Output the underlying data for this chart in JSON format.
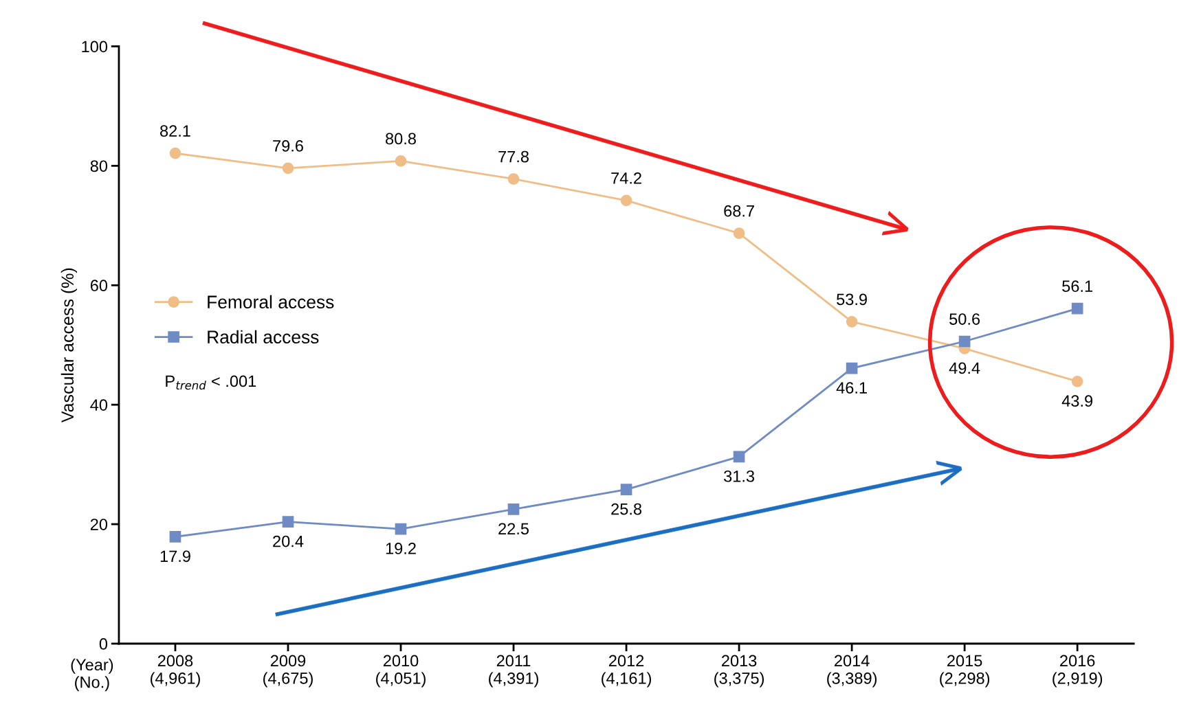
{
  "chart_data": {
    "type": "line",
    "ylabel": "Vascular access (%)",
    "categories": [
      "2008\n(4,961)",
      "2009\n(4,675)",
      "2010\n(4,051)",
      "2011\n(4,391)",
      "2012\n(4,161)",
      "2013\n(3,375)",
      "2014\n(3,389)",
      "2015\n(2,298)",
      "2016\n(2,919)"
    ],
    "series": [
      {
        "name": "Femoral access",
        "color": "#f0bd87",
        "marker": "circle",
        "values": [
          82.1,
          79.6,
          80.8,
          77.8,
          74.2,
          68.7,
          53.9,
          49.4,
          43.9
        ]
      },
      {
        "name": "Radial access",
        "color": "#6f8bc4",
        "marker": "square",
        "values": [
          17.9,
          20.4,
          19.2,
          22.5,
          25.8,
          31.3,
          46.1,
          50.6,
          56.1
        ]
      }
    ],
    "ylim": [
      0,
      100
    ],
    "yticks": [
      0,
      20,
      40,
      60,
      80,
      100
    ],
    "grid": false,
    "legend": "left",
    "data_labels": true,
    "annotations": [
      "P$_{trend}$ < .001",
      "(Year)\n(No.)"
    ]
  }
}
